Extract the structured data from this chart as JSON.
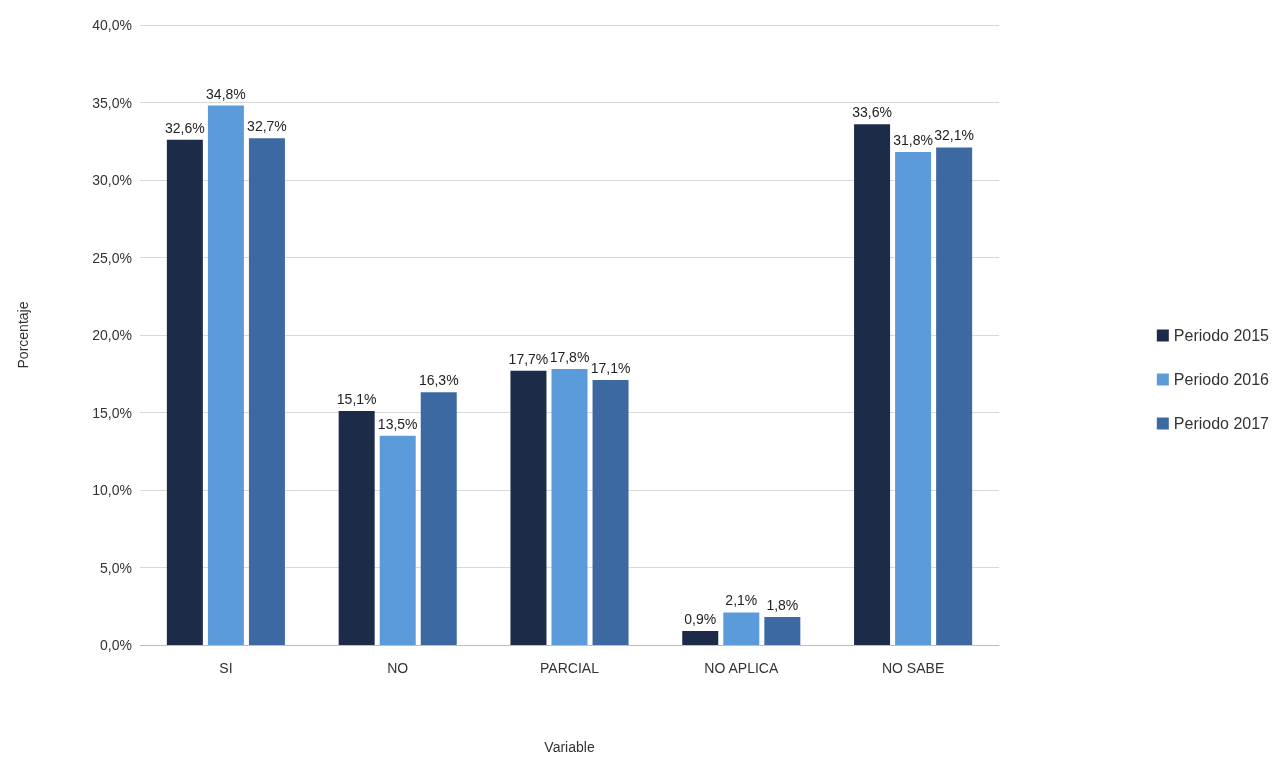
{
  "chart_data": {
    "type": "bar",
    "xlabel": "Variable",
    "ylabel": "Porcentaje",
    "categories": [
      "SI",
      "NO",
      "PARCIAL",
      "NO APLICA",
      "NO SABE"
    ],
    "series": [
      {
        "name": "Periodo 2015",
        "color": "#1b2b48",
        "values": [
          32.6,
          15.1,
          17.7,
          0.9,
          33.6
        ],
        "value_labels": [
          "32,6%",
          "15,1%",
          "17,7%",
          "0,9%",
          "33,6%"
        ]
      },
      {
        "name": "Periodo 2016",
        "color": "#5b9bd9",
        "values": [
          34.8,
          13.5,
          17.8,
          2.1,
          31.8
        ],
        "value_labels": [
          "34,8%",
          "13,5%",
          "17,8%",
          "2,1%",
          "31,8%"
        ]
      },
      {
        "name": "Periodo 2017",
        "color": "#3d69a3",
        "values": [
          32.7,
          16.3,
          17.1,
          1.8,
          32.1
        ],
        "value_labels": [
          "32,7%",
          "16,3%",
          "17,1%",
          "1,8%",
          "32,1%"
        ]
      }
    ],
    "ylim": [
      0,
      40
    ],
    "yticks": [
      {
        "value": 0,
        "label": "0,0%"
      },
      {
        "value": 5,
        "label": "5,0%"
      },
      {
        "value": 10,
        "label": "10,0%"
      },
      {
        "value": 15,
        "label": "15,0%"
      },
      {
        "value": 20,
        "label": "20,0%"
      },
      {
        "value": 25,
        "label": "25,0%"
      },
      {
        "value": 30,
        "label": "30,0%"
      },
      {
        "value": 35,
        "label": "35,0%"
      },
      {
        "value": 40,
        "label": "40,0%"
      }
    ],
    "grid": "y",
    "legend": "right"
  }
}
